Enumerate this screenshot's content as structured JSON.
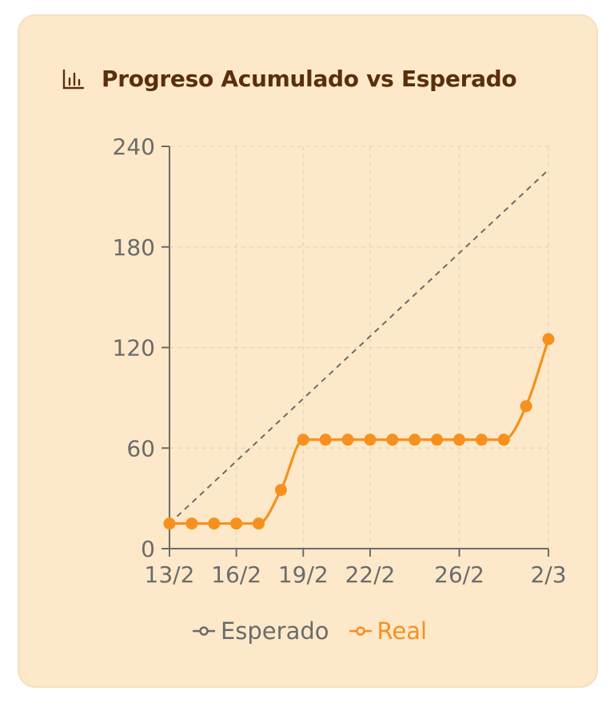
{
  "card": {
    "title": "Progreso Acumulado vs Esperado",
    "icon": "bar-chart-icon"
  },
  "colors": {
    "accent": "#f7901e",
    "expected": "#6b6b6b",
    "title": "#5b2f0b",
    "background": "#fde9c9"
  },
  "chart_data": {
    "type": "line",
    "title": "Progreso Acumulado vs Esperado",
    "xlabel": "",
    "ylabel": "",
    "x_ticks": [
      "13/2",
      "16/2",
      "19/2",
      "22/2",
      "26/2",
      "2/3"
    ],
    "y_ticks": [
      0,
      60,
      120,
      180,
      240
    ],
    "ylim": [
      0,
      240
    ],
    "xlim": [
      "2025-02-13",
      "2025-03-02"
    ],
    "grid": true,
    "legend_position": "bottom",
    "series": [
      {
        "name": "Esperado",
        "style": "dashed",
        "color": "#6b6b6b",
        "x": [
          "2025-02-13",
          "2025-03-02"
        ],
        "values": [
          15,
          226
        ]
      },
      {
        "name": "Real",
        "style": "solid",
        "color": "#f7901e",
        "x": [
          "2025-02-13",
          "2025-02-14",
          "2025-02-15",
          "2025-02-16",
          "2025-02-17",
          "2025-02-18",
          "2025-02-19",
          "2025-02-20",
          "2025-02-21",
          "2025-02-22",
          "2025-02-23",
          "2025-02-24",
          "2025-02-25",
          "2025-02-26",
          "2025-02-27",
          "2025-02-28",
          "2025-03-01",
          "2025-03-02"
        ],
        "values": [
          15,
          15,
          15,
          15,
          15,
          35,
          65,
          65,
          65,
          65,
          65,
          65,
          65,
          65,
          65,
          65,
          85,
          125
        ]
      }
    ]
  }
}
